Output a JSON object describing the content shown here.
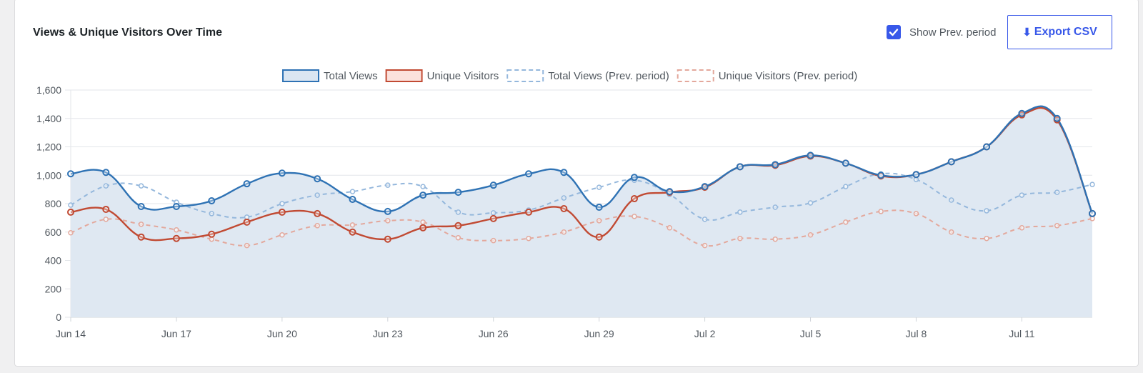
{
  "header": {
    "title": "Views & Unique Visitors Over Time",
    "show_prev_label": "Show Prev. period",
    "show_prev_checked": true,
    "export_label": "Export CSV",
    "export_icon": "download-arrow-icon"
  },
  "colors": {
    "total_views": "#2e72b4",
    "unique_visitors": "#c14a33",
    "total_views_prev": "#94b7dc",
    "unique_visitors_prev": "#e3a89c",
    "area_fill": "#dfe8f2",
    "checkbox": "#3858e9",
    "accent": "#3858e9"
  },
  "chart_data": {
    "type": "line",
    "title": "",
    "xlabel": "",
    "ylabel": "",
    "ylim": [
      0,
      1600
    ],
    "y_ticks": [
      0,
      200,
      400,
      600,
      800,
      1000,
      1200,
      1400,
      1600
    ],
    "x": [
      "Jun 14",
      "Jun 15",
      "Jun 16",
      "Jun 17",
      "Jun 18",
      "Jun 19",
      "Jun 20",
      "Jun 21",
      "Jun 22",
      "Jun 23",
      "Jun 24",
      "Jun 25",
      "Jun 26",
      "Jun 27",
      "Jun 28",
      "Jun 29",
      "Jun 30",
      "Jul 1",
      "Jul 2",
      "Jul 3",
      "Jul 4",
      "Jul 5",
      "Jul 6",
      "Jul 7",
      "Jul 8",
      "Jul 9",
      "Jul 10",
      "Jul 11",
      "Jul 12",
      "Jul 13"
    ],
    "x_tick_labels": [
      "Jun 14",
      "Jun 17",
      "Jun 20",
      "Jun 23",
      "Jun 26",
      "Jun 29",
      "Jul 2",
      "Jul 5",
      "Jul 8",
      "Jul 11"
    ],
    "legend_position": "top-center",
    "grid": true,
    "series": [
      {
        "name": "Total Views",
        "style": "solid-area",
        "values": [
          1010,
          1020,
          780,
          780,
          820,
          940,
          1015,
          975,
          830,
          745,
          860,
          880,
          930,
          1010,
          1020,
          775,
          985,
          885,
          920,
          1060,
          1075,
          1140,
          1085,
          1000,
          1005,
          1095,
          1200,
          1435,
          1400,
          730
        ]
      },
      {
        "name": "Unique Visitors",
        "style": "solid",
        "values": [
          740,
          760,
          565,
          555,
          585,
          670,
          740,
          730,
          600,
          550,
          630,
          645,
          695,
          740,
          765,
          565,
          835,
          880,
          915,
          1060,
          1070,
          1135,
          1085,
          995,
          1005,
          1095,
          1200,
          1425,
          1390,
          730
        ]
      },
      {
        "name": "Total Views (Prev. period)",
        "style": "dashed",
        "values": [
          790,
          925,
          925,
          810,
          730,
          705,
          800,
          860,
          885,
          930,
          920,
          740,
          735,
          755,
          840,
          915,
          965,
          865,
          690,
          740,
          775,
          805,
          920,
          1010,
          970,
          825,
          750,
          860,
          880,
          935
        ]
      },
      {
        "name": "Unique Visitors (Prev. period)",
        "style": "dashed",
        "values": [
          595,
          690,
          655,
          615,
          550,
          505,
          580,
          645,
          650,
          680,
          670,
          560,
          540,
          555,
          600,
          680,
          710,
          630,
          505,
          555,
          550,
          580,
          670,
          745,
          730,
          600,
          555,
          630,
          645,
          695
        ]
      }
    ]
  }
}
